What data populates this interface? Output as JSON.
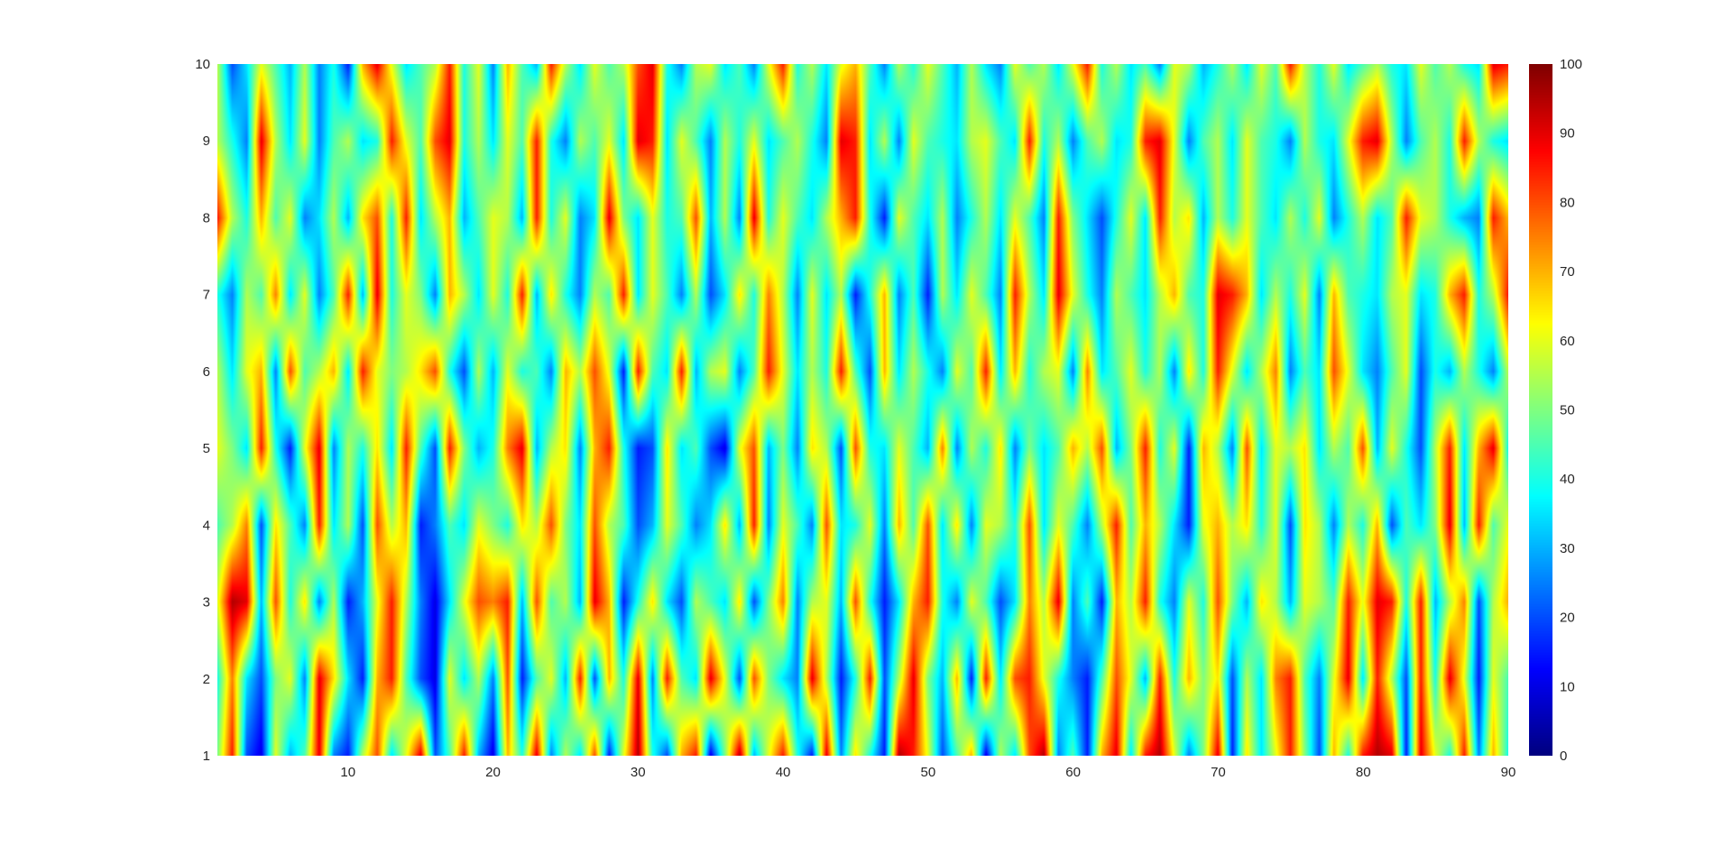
{
  "chart_data": {
    "type": "heatmap",
    "title": "",
    "xlabel": "",
    "ylabel": "",
    "colormap": "jet",
    "shading": "interp",
    "grid": false,
    "legend": "none",
    "x": {
      "range": [
        1,
        90
      ],
      "ticks": [
        10,
        20,
        30,
        40,
        50,
        60,
        70,
        80,
        90
      ],
      "tick_labels": [
        "10",
        "20",
        "30",
        "40",
        "50",
        "60",
        "70",
        "80",
        "90"
      ]
    },
    "y": {
      "range": [
        1,
        10
      ],
      "ticks": [
        1,
        2,
        3,
        4,
        5,
        6,
        7,
        8,
        9,
        10
      ],
      "tick_labels": [
        "1",
        "2",
        "3",
        "4",
        "5",
        "6",
        "7",
        "8",
        "9",
        "10"
      ]
    },
    "colorbar": {
      "range": [
        0,
        100
      ],
      "ticks": [
        0,
        10,
        20,
        30,
        40,
        50,
        60,
        70,
        80,
        90,
        100
      ],
      "tick_labels": [
        "0",
        "10",
        "20",
        "30",
        "40",
        "50",
        "60",
        "70",
        "80",
        "90",
        "100"
      ],
      "placement": "right"
    },
    "values": [
      [
        50,
        85,
        20,
        10,
        60,
        30,
        45,
        90,
        25,
        15,
        55,
        80,
        35,
        60,
        90,
        20,
        45,
        85,
        30,
        10,
        70,
        40,
        90,
        25,
        55,
        35,
        80,
        15,
        60,
        95,
        40,
        20,
        70,
        85,
        10,
        50,
        95,
        30,
        60,
        85,
        40,
        15,
        90,
        25,
        65,
        40,
        15,
        95,
        85,
        60,
        20,
        45,
        70,
        10,
        55,
        35,
        80,
        95,
        25,
        45,
        15,
        70,
        90,
        35,
        85,
        95,
        60,
        25,
        50,
        90,
        15,
        65,
        35,
        60,
        85,
        50,
        20,
        70,
        40,
        85,
        95,
        90,
        15,
        90,
        60,
        40,
        85,
        25,
        70,
        40
      ],
      [
        40,
        75,
        35,
        20,
        50,
        60,
        25,
        90,
        65,
        35,
        15,
        70,
        85,
        45,
        20,
        10,
        60,
        35,
        55,
        25,
        80,
        15,
        45,
        60,
        30,
        85,
        20,
        70,
        40,
        90,
        25,
        85,
        45,
        35,
        90,
        60,
        20,
        80,
        50,
        35,
        25,
        90,
        55,
        15,
        40,
        85,
        20,
        55,
        90,
        50,
        30,
        70,
        15,
        85,
        35,
        80,
        85,
        60,
        40,
        25,
        15,
        45,
        80,
        60,
        30,
        85,
        40,
        70,
        50,
        65,
        20,
        55,
        35,
        75,
        85,
        45,
        25,
        60,
        90,
        35,
        85,
        55,
        20,
        85,
        40,
        90,
        60,
        15,
        60,
        45
      ],
      [
        60,
        95,
        90,
        30,
        80,
        40,
        65,
        25,
        55,
        15,
        30,
        60,
        85,
        55,
        25,
        10,
        35,
        60,
        80,
        75,
        85,
        30,
        80,
        45,
        55,
        30,
        90,
        70,
        15,
        40,
        65,
        35,
        20,
        55,
        45,
        35,
        65,
        20,
        50,
        75,
        25,
        55,
        60,
        30,
        80,
        40,
        15,
        35,
        70,
        85,
        40,
        25,
        60,
        45,
        20,
        35,
        75,
        55,
        90,
        25,
        45,
        15,
        70,
        55,
        85,
        40,
        25,
        60,
        40,
        80,
        50,
        30,
        65,
        55,
        30,
        60,
        55,
        45,
        85,
        60,
        90,
        85,
        40,
        85,
        30,
        55,
        75,
        20,
        55,
        70
      ],
      [
        45,
        55,
        75,
        20,
        65,
        45,
        25,
        85,
        35,
        55,
        20,
        80,
        55,
        70,
        15,
        25,
        45,
        35,
        60,
        50,
        40,
        65,
        55,
        80,
        50,
        35,
        80,
        55,
        45,
        20,
        30,
        60,
        45,
        25,
        35,
        65,
        30,
        85,
        25,
        60,
        45,
        25,
        80,
        35,
        40,
        60,
        25,
        70,
        45,
        80,
        35,
        65,
        25,
        60,
        55,
        40,
        80,
        35,
        60,
        45,
        25,
        55,
        85,
        45,
        70,
        55,
        35,
        15,
        60,
        70,
        55,
        65,
        40,
        60,
        20,
        65,
        55,
        25,
        55,
        40,
        70,
        20,
        45,
        35,
        50,
        90,
        30,
        85,
        45,
        60
      ],
      [
        60,
        50,
        35,
        85,
        40,
        15,
        60,
        90,
        25,
        55,
        40,
        65,
        35,
        85,
        45,
        20,
        85,
        50,
        30,
        40,
        75,
        90,
        30,
        55,
        65,
        25,
        70,
        85,
        40,
        15,
        20,
        65,
        35,
        45,
        20,
        10,
        60,
        80,
        30,
        50,
        25,
        65,
        55,
        20,
        80,
        40,
        35,
        60,
        45,
        30,
        75,
        25,
        55,
        40,
        65,
        25,
        50,
        35,
        45,
        70,
        55,
        80,
        30,
        50,
        85,
        40,
        60,
        15,
        70,
        55,
        25,
        80,
        35,
        60,
        55,
        65,
        35,
        55,
        45,
        80,
        30,
        60,
        40,
        20,
        55,
        85,
        35,
        70,
        90,
        40
      ],
      [
        55,
        35,
        60,
        70,
        25,
        80,
        45,
        55,
        70,
        35,
        85,
        60,
        50,
        55,
        65,
        80,
        40,
        20,
        55,
        30,
        60,
        40,
        45,
        25,
        70,
        55,
        80,
        60,
        15,
        85,
        45,
        35,
        85,
        30,
        55,
        60,
        25,
        45,
        85,
        60,
        35,
        55,
        40,
        85,
        45,
        20,
        70,
        35,
        55,
        40,
        25,
        60,
        45,
        85,
        35,
        70,
        40,
        55,
        60,
        25,
        75,
        35,
        45,
        60,
        40,
        55,
        25,
        65,
        40,
        85,
        60,
        35,
        55,
        75,
        25,
        45,
        35,
        80,
        60,
        35,
        25,
        45,
        60,
        20,
        40,
        30,
        55,
        40,
        25,
        55
      ],
      [
        40,
        25,
        55,
        45,
        75,
        35,
        60,
        25,
        45,
        85,
        30,
        90,
        40,
        60,
        50,
        25,
        70,
        55,
        35,
        60,
        40,
        85,
        30,
        65,
        40,
        25,
        55,
        45,
        85,
        35,
        60,
        45,
        25,
        55,
        20,
        35,
        65,
        40,
        75,
        55,
        25,
        60,
        35,
        55,
        15,
        40,
        70,
        25,
        45,
        15,
        55,
        35,
        60,
        45,
        25,
        85,
        55,
        35,
        90,
        60,
        40,
        25,
        55,
        45,
        35,
        55,
        70,
        45,
        40,
        90,
        85,
        70,
        35,
        55,
        40,
        60,
        25,
        70,
        45,
        40,
        35,
        55,
        60,
        35,
        40,
        70,
        85,
        40,
        55,
        85
      ],
      [
        85,
        55,
        40,
        70,
        45,
        60,
        25,
        35,
        55,
        30,
        65,
        80,
        40,
        85,
        35,
        55,
        70,
        30,
        45,
        60,
        55,
        30,
        85,
        40,
        60,
        25,
        35,
        90,
        50,
        35,
        60,
        40,
        45,
        80,
        30,
        55,
        25,
        90,
        40,
        60,
        45,
        35,
        55,
        70,
        85,
        40,
        15,
        60,
        45,
        35,
        55,
        25,
        40,
        55,
        35,
        60,
        45,
        25,
        85,
        50,
        35,
        20,
        40,
        60,
        35,
        85,
        55,
        65,
        30,
        55,
        40,
        60,
        45,
        35,
        55,
        40,
        60,
        25,
        40,
        55,
        35,
        45,
        85,
        60,
        55,
        40,
        30,
        25,
        85,
        70
      ],
      [
        55,
        40,
        25,
        90,
        55,
        35,
        60,
        25,
        45,
        55,
        35,
        40,
        85,
        60,
        45,
        80,
        90,
        40,
        55,
        35,
        60,
        45,
        85,
        40,
        25,
        55,
        45,
        60,
        35,
        90,
        85,
        35,
        60,
        45,
        25,
        55,
        40,
        60,
        35,
        45,
        55,
        40,
        25,
        90,
        85,
        35,
        55,
        25,
        60,
        45,
        40,
        35,
        55,
        60,
        45,
        35,
        85,
        40,
        55,
        25,
        45,
        55,
        35,
        40,
        85,
        90,
        60,
        25,
        45,
        55,
        35,
        60,
        45,
        40,
        25,
        55,
        40,
        35,
        60,
        85,
        90,
        55,
        25,
        45,
        55,
        40,
        85,
        55,
        40,
        35
      ],
      [
        55,
        20,
        35,
        60,
        45,
        30,
        55,
        25,
        40,
        15,
        70,
        90,
        60,
        35,
        45,
        55,
        85,
        40,
        60,
        25,
        70,
        45,
        30,
        85,
        55,
        35,
        60,
        45,
        55,
        80,
        90,
        40,
        25,
        55,
        60,
        35,
        45,
        25,
        60,
        85,
        40,
        55,
        35,
        60,
        70,
        45,
        25,
        55,
        40,
        60,
        45,
        30,
        55,
        35,
        25,
        60,
        45,
        55,
        35,
        60,
        85,
        40,
        55,
        35,
        45,
        25,
        60,
        55,
        30,
        40,
        55,
        35,
        60,
        45,
        85,
        55,
        40,
        60,
        35,
        45,
        55,
        40,
        35,
        60,
        45,
        55,
        40,
        35,
        90,
        85
      ]
    ]
  }
}
